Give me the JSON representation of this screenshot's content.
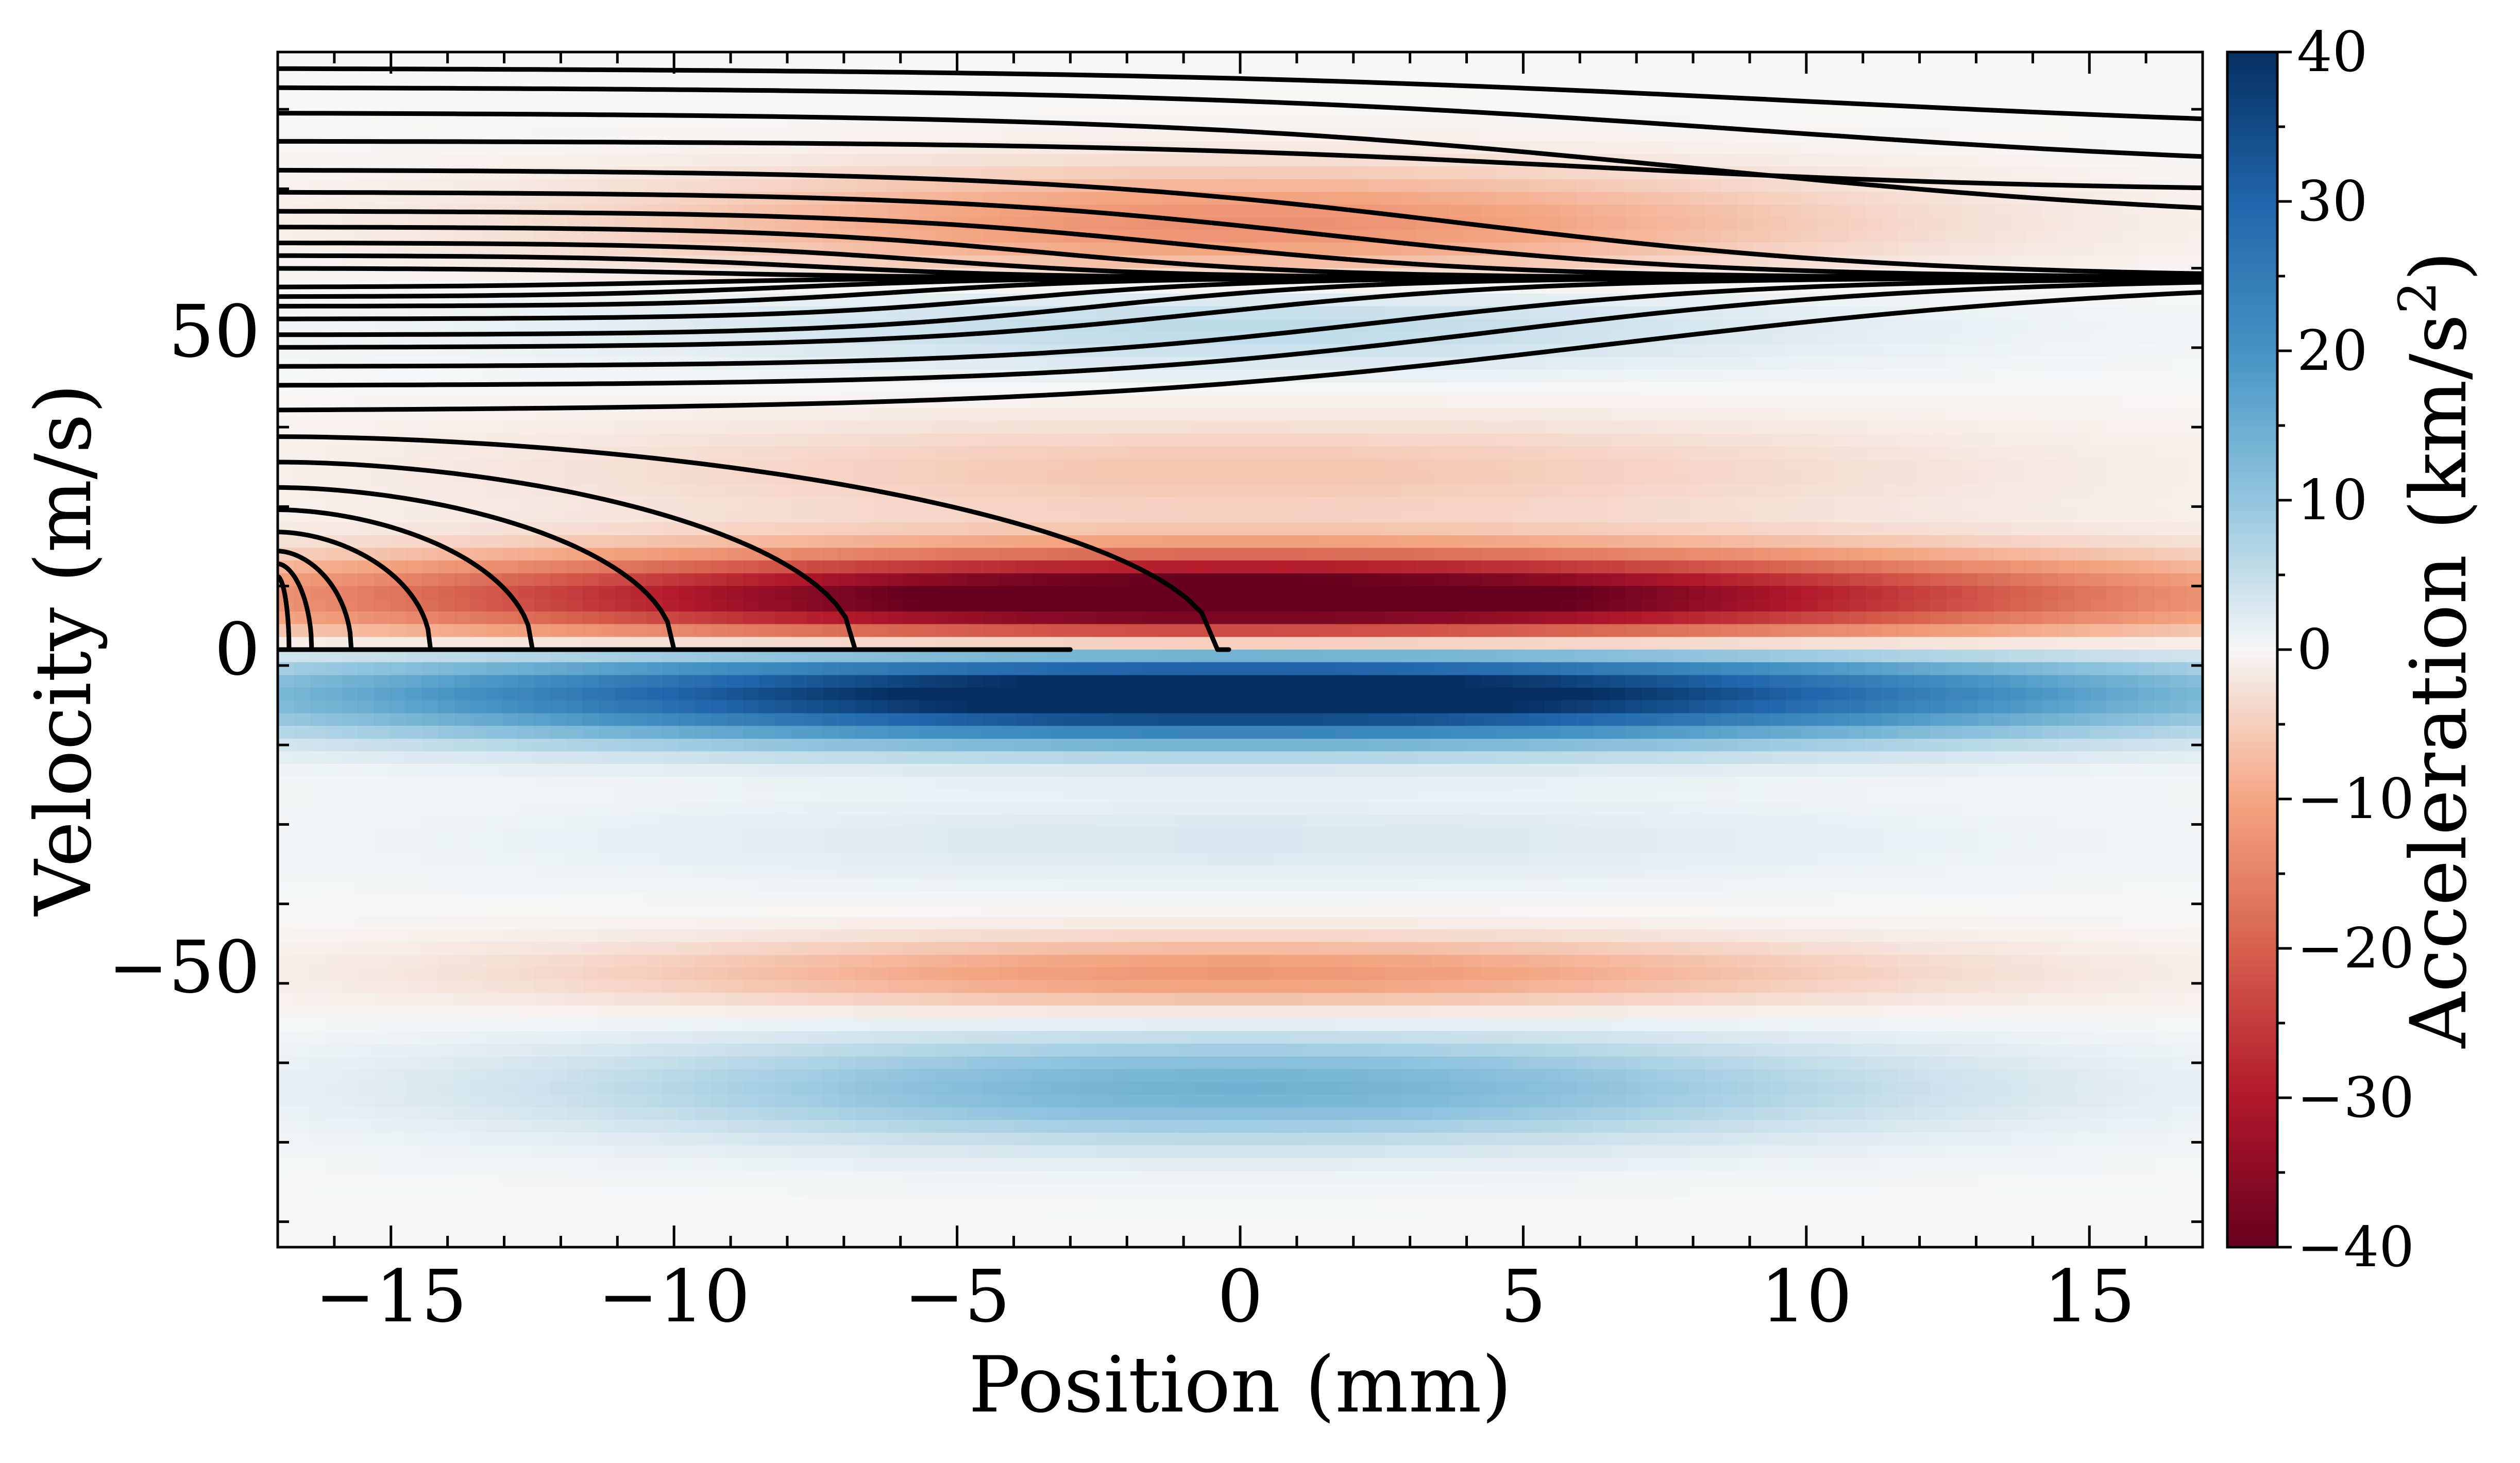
{
  "chart_data": {
    "type": "heatmap",
    "title": "",
    "xlabel": "Position (mm)",
    "ylabel": "Velocity (m/s)",
    "xlim": [
      -17,
      17
    ],
    "ylim": [
      -94,
      94
    ],
    "xticks": [
      -15,
      -10,
      -5,
      0,
      5,
      10,
      15
    ],
    "xtick_labels": [
      "−15",
      "−10",
      "−5",
      "0",
      "5",
      "10",
      "15"
    ],
    "yticks": [
      -50,
      0,
      50
    ],
    "ytick_labels": [
      "−50",
      "0",
      "50"
    ],
    "grid": false,
    "heatmap": {
      "colormap": "RdBu",
      "vmin": -40,
      "vmax": 40,
      "x_resolution": 120,
      "v_resolution": 94,
      "bands": [
        {
          "v_center": 8,
          "v_width": 5,
          "x_center": 0,
          "x_width": 10.5,
          "amplitude": -48
        },
        {
          "v_center": -7,
          "v_width": 5,
          "x_center": 0,
          "x_width": 10.5,
          "amplitude": 48
        },
        {
          "v_center": 67,
          "v_width": 6,
          "x_center": 0,
          "x_width": 7.5,
          "amplitude": -13
        },
        {
          "v_center": 51,
          "v_width": 5,
          "x_center": 0,
          "x_width": 7.5,
          "amplitude": 6
        },
        {
          "v_center": 28,
          "v_width": 6,
          "x_center": 0,
          "x_width": 9,
          "amplitude": -6
        },
        {
          "v_center": -51,
          "v_width": 4,
          "x_center": 0,
          "x_width": 8,
          "amplitude": -12
        },
        {
          "v_center": -69,
          "v_width": 6,
          "x_center": 0,
          "x_width": 8,
          "amplitude": 14
        },
        {
          "v_center": -30,
          "v_width": 5,
          "x_center": 0,
          "x_width": 9,
          "amplitude": 3
        }
      ]
    },
    "colorbar": {
      "label": "Acceleration (km/s²)",
      "label_base": "Acceleration (km/s",
      "label_sup": "2",
      "label_end": ")",
      "ticks": [
        -40,
        -30,
        -20,
        -10,
        0,
        10,
        20,
        30,
        40
      ],
      "tick_labels": [
        "−40",
        "−30",
        "−20",
        "−10",
        "0",
        "10",
        "20",
        "30",
        "40"
      ]
    },
    "trajectories": {
      "start_x": -17,
      "captured_velocity": 58.5,
      "stopped": [
        {
          "v0": 11.5,
          "x_stop": -16.8,
          "stop_at_v": 0
        },
        {
          "v0": 13.5,
          "x_stop": -16.4,
          "stop_at_v": 0
        },
        {
          "v0": 15.5,
          "x_stop": -15.7,
          "stop_at_v": 0
        },
        {
          "v0": 18.5,
          "x_stop": -14.3,
          "stop_at_v": 0
        },
        {
          "v0": 22.0,
          "x_stop": -12.5,
          "stop_at_v": 0
        },
        {
          "v0": 25.5,
          "x_stop": -10.0,
          "stop_at_v": 0
        },
        {
          "v0": 29.5,
          "x_stop": -6.8,
          "stop_at_v": 0
        },
        {
          "v0": 33.5,
          "x_stop": -0.4,
          "stop_at_v": 0
        }
      ],
      "zero_line": {
        "v": 0,
        "x_start": -17,
        "x_end": -3
      },
      "captured": [
        {
          "v0": 37.5,
          "x_mid": 6.5,
          "width": 5.0
        },
        {
          "v0": 41.5,
          "x_mid": 4.5,
          "width": 4.0
        },
        {
          "v0": 44.5,
          "x_mid": 2.5,
          "width": 3.5
        },
        {
          "v0": 47.5,
          "x_mid": -0.5,
          "width": 3.0
        },
        {
          "v0": 49.5,
          "x_mid": -2.5,
          "width": 2.5
        },
        {
          "v0": 52.0,
          "x_mid": -4.0,
          "width": 2.2
        },
        {
          "v0": 54.0,
          "x_mid": -6.0,
          "width": 2.0
        },
        {
          "v0": 55.5,
          "x_mid": -8.0,
          "width": 2.0
        },
        {
          "v0": 57.0,
          "x_mid": -10.0,
          "width": 2.0
        },
        {
          "v0": 60.0,
          "x_mid": -9.5,
          "width": 2.0
        },
        {
          "v0": 62.0,
          "x_mid": -7.5,
          "width": 2.0
        },
        {
          "v0": 64.0,
          "x_mid": -5.5,
          "width": 2.2
        },
        {
          "v0": 66.5,
          "x_mid": -3.5,
          "width": 2.5
        },
        {
          "v0": 69.0,
          "x_mid": -1.0,
          "width": 3.0
        },
        {
          "v0": 72.0,
          "x_mid": 1.5,
          "width": 3.5
        },
        {
          "v0": 75.5,
          "x_mid": 4.0,
          "width": 4.0
        }
      ],
      "partial": [
        {
          "v0": 80.0,
          "v_end": 72.0,
          "x_mid": 6.0,
          "width": 4.5
        },
        {
          "v0": 84.5,
          "v_end": 67.0,
          "x_mid": 8.0,
          "width": 5.0
        },
        {
          "v0": 88.5,
          "v_end": 75.0,
          "x_mid": 9.0,
          "width": 5.5
        },
        {
          "v0": 91.5,
          "v_end": 81.0,
          "x_mid": 10.0,
          "width": 6.0
        }
      ]
    }
  }
}
